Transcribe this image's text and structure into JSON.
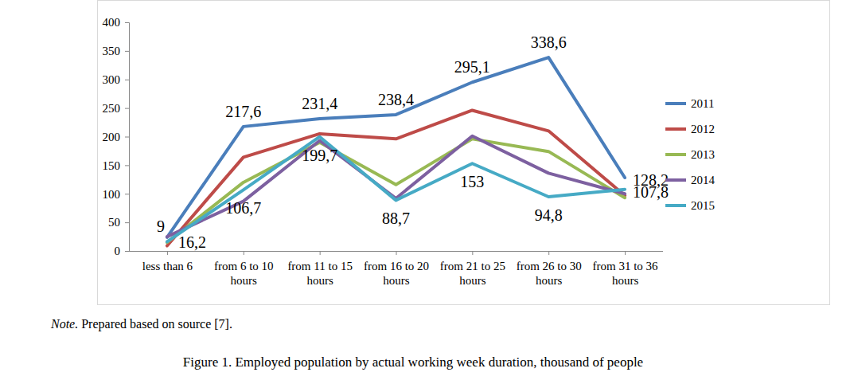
{
  "chart_data": {
    "type": "line",
    "title": "Figure 1. Employed population by actual working week duration, thousand of people",
    "annotations": [
      "Note.",
      "Prepared based on source [7]."
    ],
    "categories": [
      "less than 6",
      "from 6 to 10 hours",
      "from 11 to 15 hours",
      "from 16 to 20 hours",
      "from 21 to 25 hours",
      "from 26 to 30 hours",
      "from 31 to 36 hours"
    ],
    "series": [
      {
        "name": "2011",
        "color": "#4a7ebb",
        "values": [
          24,
          217.6,
          231.4,
          238.4,
          295.1,
          338.6,
          128.2
        ],
        "value_labels": [
          null,
          "217,6",
          "231,4",
          "238,4",
          "295,1",
          "338,6",
          "128,2"
        ]
      },
      {
        "name": "2012",
        "color": "#be4b48",
        "values": [
          9,
          164,
          205,
          196,
          246,
          210,
          97
        ],
        "value_labels": [
          "9",
          null,
          null,
          null,
          null,
          null,
          null
        ]
      },
      {
        "name": "2013",
        "color": "#98b954",
        "values": [
          15,
          120,
          190,
          116,
          196,
          174,
          93
        ]
      },
      {
        "name": "2014",
        "color": "#7d60a0",
        "values": [
          25,
          87,
          193,
          92,
          201,
          136,
          100
        ]
      },
      {
        "name": "2015",
        "color": "#46aac5",
        "values": [
          16.2,
          106.7,
          199.7,
          88.7,
          153,
          94.8,
          107.8
        ],
        "value_labels": [
          "16,2",
          "106,7",
          "199,7",
          "88,7",
          "153",
          "94,8",
          "107,8"
        ]
      }
    ],
    "ylim": [
      0,
      400
    ],
    "yticks": [
      0,
      50,
      100,
      150,
      200,
      250,
      300,
      350,
      400
    ],
    "grid": false,
    "legend": "right",
    "data_labels": true
  }
}
